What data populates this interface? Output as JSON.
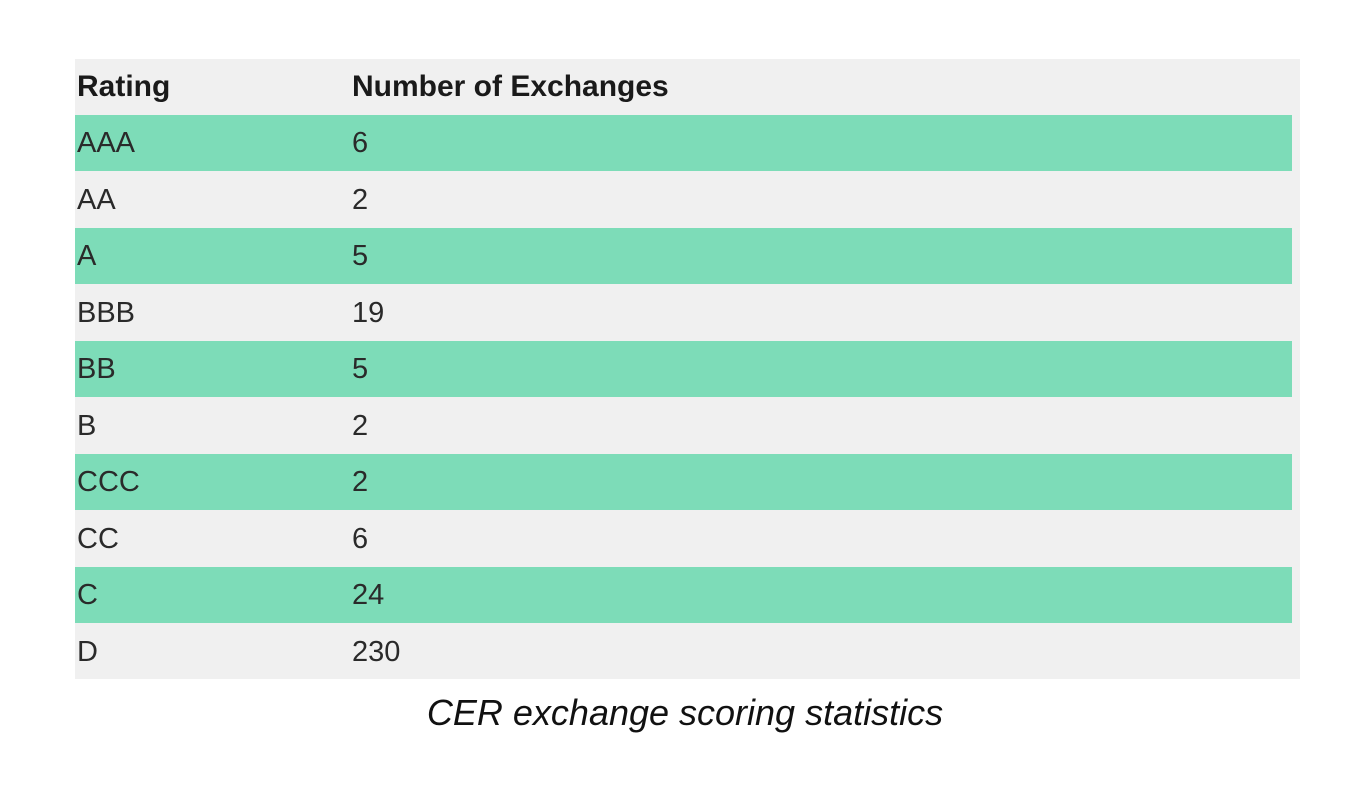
{
  "table": {
    "headers": {
      "rating": "Rating",
      "count": "Number of Exchanges"
    },
    "rows": [
      {
        "rating": "AAA",
        "count": "6"
      },
      {
        "rating": "AA",
        "count": "2"
      },
      {
        "rating": "A",
        "count": "5"
      },
      {
        "rating": "BBB",
        "count": "19"
      },
      {
        "rating": "BB",
        "count": "5"
      },
      {
        "rating": "B",
        "count": "2"
      },
      {
        "rating": "CCC",
        "count": "2"
      },
      {
        "rating": "CC",
        "count": "6"
      },
      {
        "rating": "C",
        "count": "24"
      },
      {
        "rating": "D",
        "count": "230"
      }
    ],
    "stripe_color": "#7ddcb8",
    "background_color": "#f0f0f0"
  },
  "caption": "CER exchange scoring statistics"
}
